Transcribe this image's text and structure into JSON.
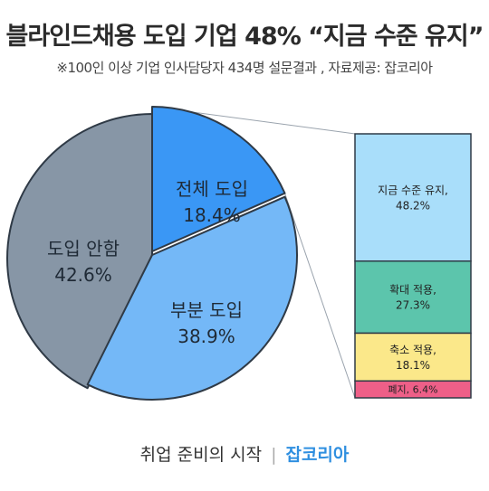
{
  "title": "블라인드채용 도입 기업 48% “지금 수준 유지”",
  "subtitle": "※100인 이상 기업 인사담당자 434명 설문결과 ,  자료제공: 잡코리아",
  "footer": {
    "left": "취업 준비의 시작",
    "separator": "|",
    "brand": "잡코리아"
  },
  "chart_data": [
    {
      "type": "pie",
      "slices": [
        {
          "label": "전체 도입",
          "value": 18.4,
          "display": "18.4%",
          "color": "#3a97f5"
        },
        {
          "label": "부분 도입",
          "value": 38.9,
          "display": "38.9%",
          "color": "#74b8f7"
        },
        {
          "label": "도입 안함",
          "value": 42.6,
          "display": "42.6%",
          "color": "#8796a6"
        }
      ]
    },
    {
      "type": "bar",
      "stacked": true,
      "segments": [
        {
          "label": "지금 수준 유지,",
          "value": 48.2,
          "display": "48.2%",
          "color": "#a9defa"
        },
        {
          "label": "확대 적용,",
          "value": 27.3,
          "display": "27.3%",
          "color": "#5cc5ac"
        },
        {
          "label": "축소 적용,",
          "value": 18.1,
          "display": "18.1%",
          "color": "#fbe88a"
        },
        {
          "label": "폐지,",
          "value": 6.4,
          "display": "6.4%",
          "color": "#ee5f88"
        }
      ]
    }
  ]
}
